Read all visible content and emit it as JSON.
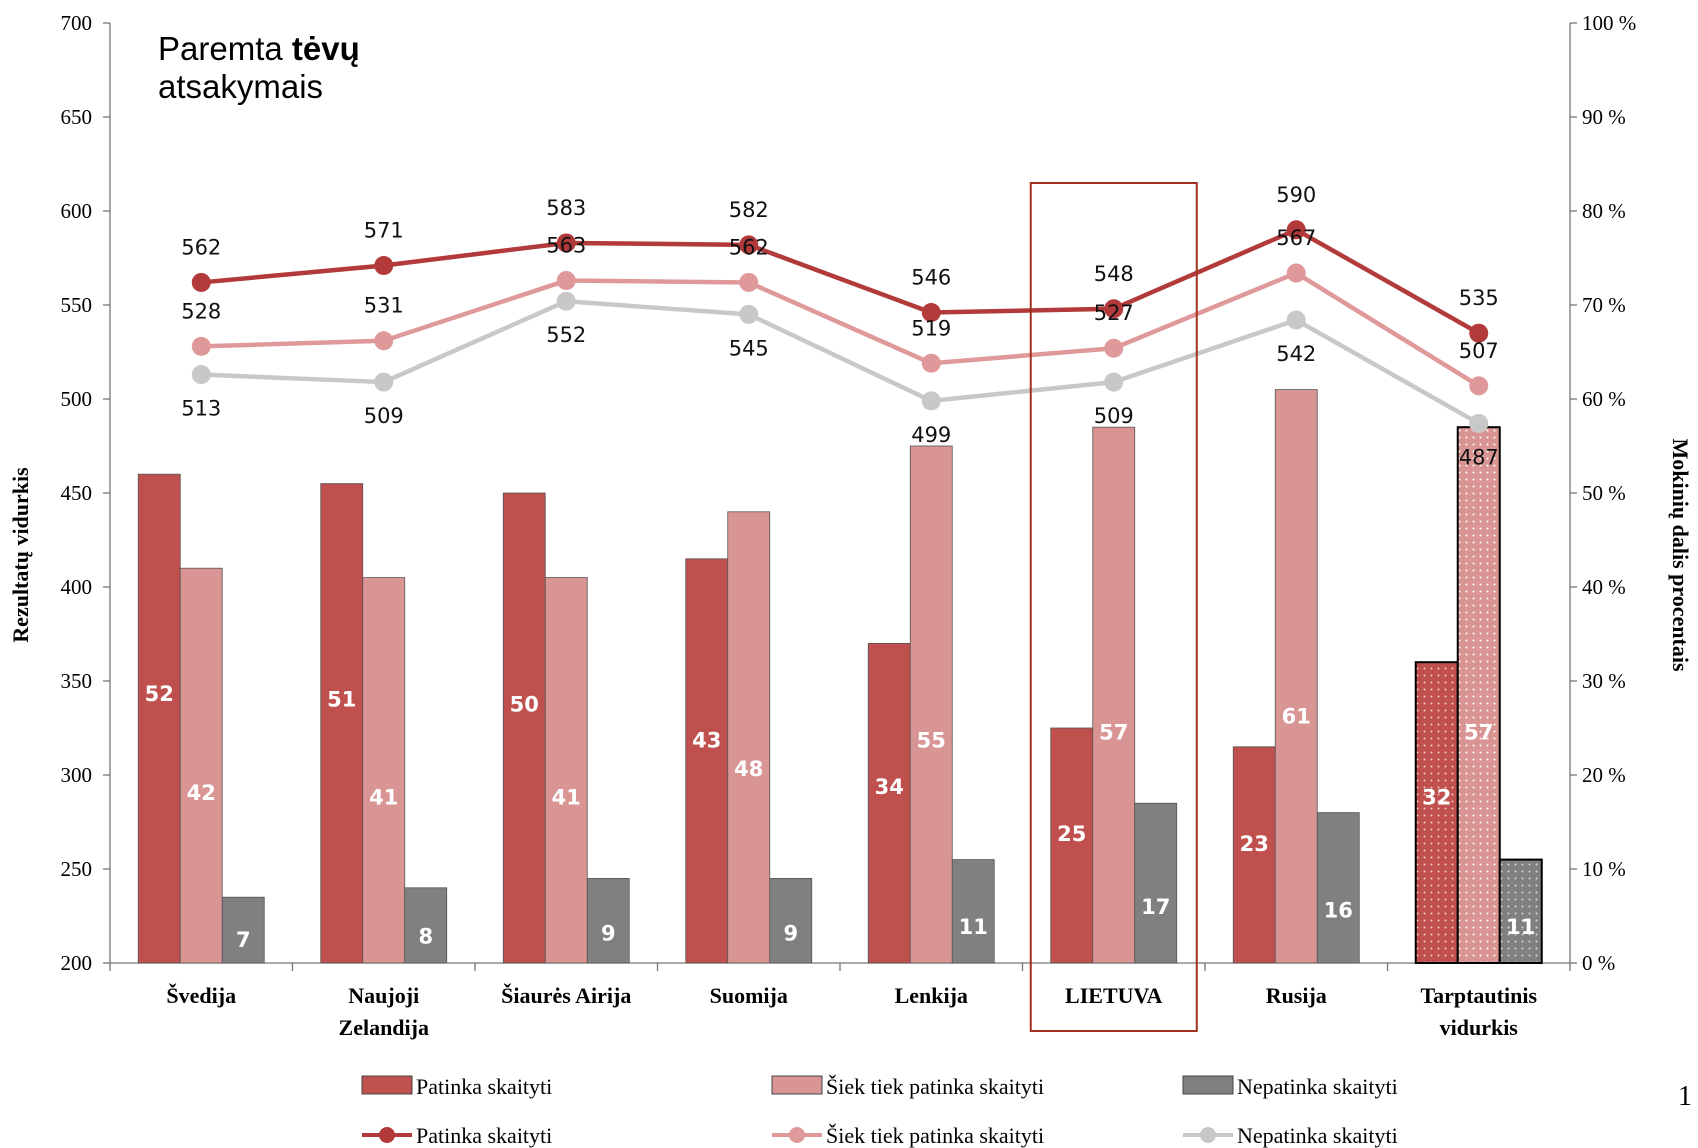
{
  "chart_data": {
    "type": "bar",
    "categories": [
      "Švedija",
      "Naujoji Zelandija",
      "Šiaurės Airija",
      "Suomija",
      "Lenkija",
      "LIETUVA",
      "Rusija",
      "Tarptautinis vidurkis"
    ],
    "category_lines": [
      [
        "Švedija"
      ],
      [
        "Naujoji",
        "Zelandija"
      ],
      [
        "Šiaurės Airija"
      ],
      [
        "Suomija"
      ],
      [
        "Lenkija"
      ],
      [
        "LIETUVA"
      ],
      [
        "Rusija"
      ],
      [
        "Tarptautinis",
        "vidurkis"
      ]
    ],
    "highlighted_category": "LIETUVA",
    "ylabel": "Rezultatų vidurkis",
    "y2label": "Mokinių dalis procentais",
    "ylim": [
      200,
      700
    ],
    "y2lim": [
      0,
      100
    ],
    "yticks": [
      "200",
      "250",
      "300",
      "350",
      "400",
      "450",
      "500",
      "550",
      "600",
      "650",
      "700"
    ],
    "y2ticks": [
      "0 %",
      "10 %",
      "20 %",
      "30 %",
      "40 %",
      "50 %",
      "60 %",
      "70 %",
      "80 %",
      "90 %",
      "100 %"
    ],
    "bar_series": [
      {
        "name": "Patinka skaityti",
        "color": "#c0504d",
        "values": [
          52,
          51,
          50,
          43,
          34,
          25,
          23,
          32
        ]
      },
      {
        "name": "Šiek tiek patinka skaityti",
        "color": "#d99594",
        "values": [
          42,
          41,
          41,
          48,
          55,
          57,
          61,
          57
        ]
      },
      {
        "name": "Nepatinka skaityti",
        "color": "#808080",
        "values": [
          7,
          8,
          9,
          9,
          11,
          17,
          16,
          11
        ]
      }
    ],
    "line_series": [
      {
        "name": "Patinka skaityti",
        "color": "#b23a3a",
        "values": [
          562,
          571,
          583,
          582,
          546,
          548,
          590,
          535
        ]
      },
      {
        "name": "Šiek tiek patinka skaityti",
        "color": "#e0999a",
        "values": [
          528,
          531,
          563,
          562,
          519,
          527,
          567,
          507
        ]
      },
      {
        "name": "Nepatinka skaityti",
        "color": "#c8c8c8",
        "values": [
          513,
          509,
          552,
          545,
          499,
          509,
          542,
          487
        ]
      }
    ],
    "annotation": {
      "prefix": "Paremta ",
      "bold": "tėvų",
      "line2": "atsakymais"
    },
    "page_number": "1"
  }
}
